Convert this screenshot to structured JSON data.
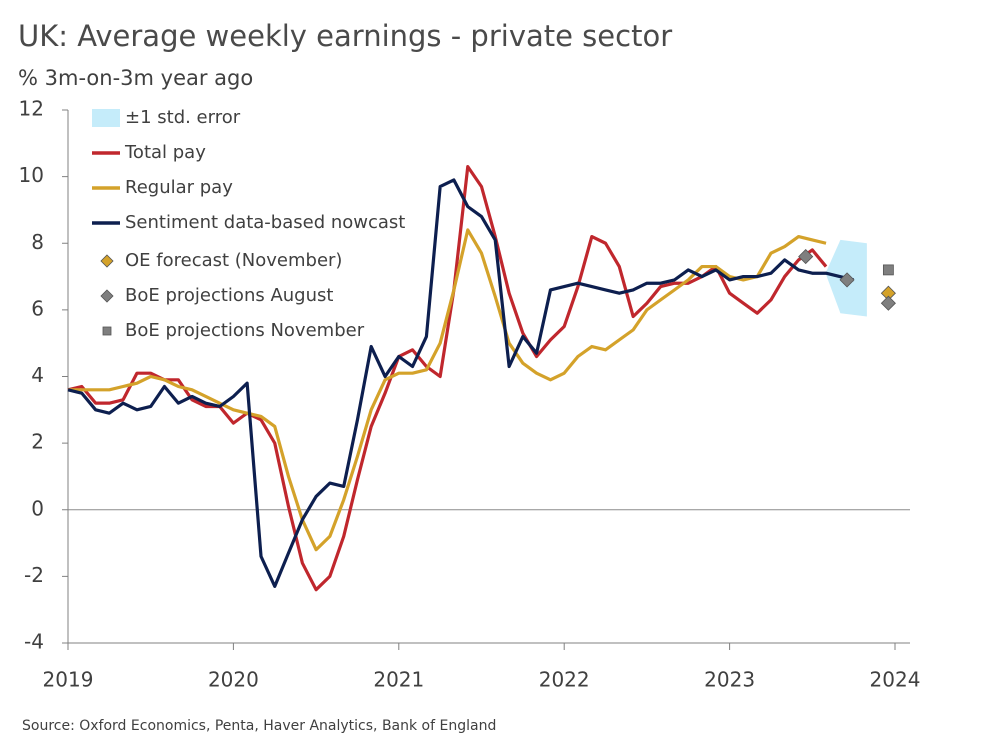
{
  "chart_data": {
    "type": "line",
    "title": "UK: Average weekly earnings - private sector",
    "subtitle": "% 3m-on-3m year ago",
    "source": "Source: Oxford Economics, Penta, Haver Analytics, Bank of England",
    "xlim": [
      2019,
      2024
    ],
    "xticks": [
      2019,
      2020,
      2021,
      2022,
      2023,
      2024
    ],
    "ylim": [
      -4,
      12
    ],
    "yticks": [
      -4,
      -2,
      0,
      2,
      4,
      6,
      8,
      10,
      12
    ],
    "x": [
      2019,
      2019.083,
      2019.167,
      2019.25,
      2019.333,
      2019.417,
      2019.5,
      2019.583,
      2019.667,
      2019.75,
      2019.833,
      2019.917,
      2020,
      2020.083,
      2020.167,
      2020.25,
      2020.333,
      2020.417,
      2020.5,
      2020.583,
      2020.667,
      2020.75,
      2020.833,
      2020.917,
      2021,
      2021.083,
      2021.167,
      2021.25,
      2021.333,
      2021.417,
      2021.5,
      2021.583,
      2021.667,
      2021.75,
      2021.833,
      2021.917,
      2022,
      2022.083,
      2022.167,
      2022.25,
      2022.333,
      2022.417,
      2022.5,
      2022.583,
      2022.667,
      2022.75,
      2022.833,
      2022.917,
      2023,
      2023.083,
      2023.167,
      2023.25,
      2023.333,
      2023.417,
      2023.5,
      2023.583,
      2023.667,
      2023.75
    ],
    "band": {
      "name": "±1 std. error",
      "color": "#c5ecfa",
      "x": [
        2023.58,
        2023.67,
        2023.83
      ],
      "lower": [
        7.1,
        5.9,
        5.8
      ],
      "upper": [
        7.1,
        8.1,
        8.0
      ]
    },
    "series": [
      {
        "name": "Total pay",
        "color": "#c0272d",
        "values": [
          3.6,
          3.7,
          3.2,
          3.2,
          3.3,
          4.1,
          4.1,
          3.9,
          3.9,
          3.3,
          3.1,
          3.1,
          2.6,
          2.9,
          2.7,
          2.0,
          0.1,
          -1.6,
          -2.4,
          -2.0,
          -0.8,
          0.9,
          2.5,
          3.5,
          4.6,
          4.8,
          4.3,
          4.0,
          6.6,
          10.3,
          9.7,
          8.2,
          6.5,
          5.3,
          4.6,
          5.1,
          5.5,
          6.7,
          8.2,
          8.0,
          7.3,
          5.8,
          6.2,
          6.7,
          6.8,
          6.8,
          7.0,
          7.3,
          6.5,
          6.2,
          5.9,
          6.3,
          7.0,
          7.5,
          7.8,
          7.3,
          null,
          null
        ]
      },
      {
        "name": "Regular pay",
        "color": "#d4a22a",
        "values": [
          3.6,
          3.6,
          3.6,
          3.6,
          3.7,
          3.8,
          4.0,
          3.9,
          3.7,
          3.6,
          3.4,
          3.2,
          3.0,
          2.9,
          2.8,
          2.5,
          1.0,
          -0.3,
          -1.2,
          -0.8,
          0.3,
          1.6,
          3.0,
          3.9,
          4.1,
          4.1,
          4.2,
          5.0,
          6.6,
          8.4,
          7.7,
          6.4,
          5.0,
          4.4,
          4.1,
          3.9,
          4.1,
          4.6,
          4.9,
          4.8,
          5.1,
          5.4,
          6.0,
          6.3,
          6.6,
          6.9,
          7.3,
          7.3,
          7.0,
          6.9,
          7.0,
          7.7,
          7.9,
          8.2,
          8.1,
          8.0,
          null,
          null
        ]
      },
      {
        "name": "Sentiment data-based nowcast",
        "color": "#0d1f4f",
        "values": [
          3.6,
          3.5,
          3.0,
          2.9,
          3.2,
          3.0,
          3.1,
          3.7,
          3.2,
          3.4,
          3.2,
          3.1,
          3.4,
          3.8,
          -1.4,
          -2.3,
          -1.3,
          -0.3,
          0.4,
          0.8,
          0.7,
          2.7,
          4.9,
          4.0,
          4.6,
          4.3,
          5.2,
          9.7,
          9.9,
          9.1,
          8.8,
          8.1,
          4.3,
          5.2,
          4.7,
          6.6,
          6.7,
          6.8,
          6.7,
          6.6,
          6.5,
          6.6,
          6.8,
          6.8,
          6.9,
          7.2,
          7.0,
          7.2,
          6.9,
          7.0,
          7.0,
          7.1,
          7.5,
          7.2,
          7.1,
          7.1,
          7.0,
          6.9
        ]
      }
    ],
    "points": [
      {
        "name": "OE forecast (November)",
        "color": "#d4a22a",
        "shape": "diamond",
        "x": [
          2023.96
        ],
        "values": [
          6.5
        ]
      },
      {
        "name": "BoE projections August",
        "color": "#7f7f7f",
        "shape": "diamond",
        "x": [
          2023.46,
          2023.71,
          2023.96
        ],
        "values": [
          7.6,
          6.9,
          6.2
        ]
      },
      {
        "name": "BoE projections November",
        "color": "#7f7f7f",
        "shape": "square",
        "x": [
          2023.96
        ],
        "values": [
          7.2
        ]
      }
    ]
  }
}
